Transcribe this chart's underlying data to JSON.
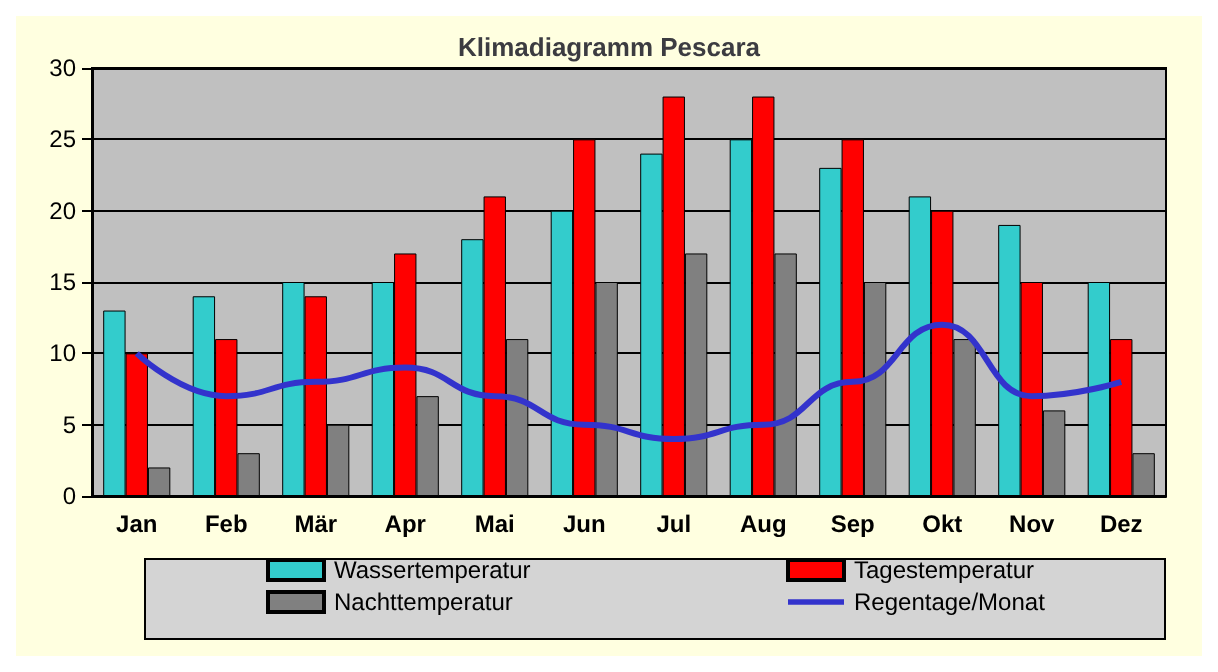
{
  "chart_data": {
    "type": "bar",
    "title": "Klimadiagramm Pescara",
    "categories": [
      "Jan",
      "Feb",
      "Mär",
      "Apr",
      "Mai",
      "Jun",
      "Jul",
      "Aug",
      "Sep",
      "Okt",
      "Nov",
      "Dez"
    ],
    "series": [
      {
        "name": "Wassertemperatur",
        "color": "#33cccc",
        "values": [
          13,
          14,
          15,
          15,
          18,
          20,
          24,
          25,
          23,
          21,
          19,
          15
        ]
      },
      {
        "name": "Tagestemperatur",
        "color": "#ff0000",
        "values": [
          10,
          11,
          14,
          17,
          21,
          25,
          28,
          28,
          25,
          20,
          15,
          11
        ]
      },
      {
        "name": "Nachttemperatur",
        "color": "#808080",
        "values": [
          2,
          3,
          5,
          7,
          11,
          15,
          17,
          17,
          15,
          11,
          6,
          3
        ]
      },
      {
        "name": "Regentage/Monat",
        "type": "line",
        "color": "#3333cc",
        "marker": "none",
        "values": [
          10,
          7,
          8,
          9,
          7,
          5,
          4,
          5,
          8,
          12,
          7,
          8
        ]
      }
    ],
    "ylim": [
      0,
      30
    ],
    "yticks": [
      0,
      5,
      10,
      15,
      20,
      25,
      30
    ],
    "grid": "y",
    "legend": "bottom"
  }
}
